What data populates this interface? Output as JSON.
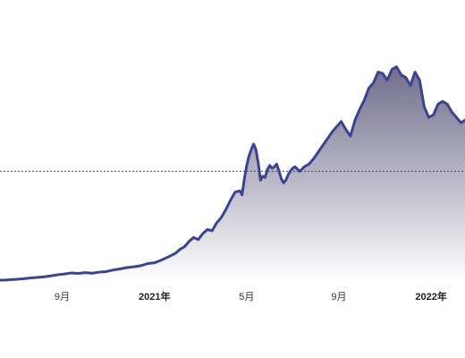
{
  "chart_data": {
    "type": "area",
    "title": "",
    "xlabel": "",
    "ylabel": "",
    "grid": false,
    "legend": "none",
    "colors": {
      "line": "#3a4590",
      "fill_top": "#6a6686",
      "fill_bottom": "#ffffff",
      "reference_line": "#3a4590"
    },
    "x_ticks": [
      {
        "label": "9月",
        "x": 2.0,
        "bold": false
      },
      {
        "label": "2021年",
        "x": 6.0,
        "bold": true
      },
      {
        "label": "5月",
        "x": 10.0,
        "bold": false
      },
      {
        "label": "9月",
        "x": 14.0,
        "bold": false
      },
      {
        "label": "2022年",
        "x": 18.0,
        "bold": true
      }
    ],
    "xlim": [
      -0.7,
      19.47
    ],
    "ylim": [
      0,
      100
    ],
    "reference_line": {
      "y": 40.8
    },
    "series": [
      {
        "x": [
          -0.7,
          -0.5,
          -0.2,
          0.0,
          0.3,
          0.6,
          0.9,
          1.2,
          1.5,
          1.8,
          2.1,
          2.4,
          2.7,
          3.0,
          3.3,
          3.6,
          3.9,
          4.2,
          4.5,
          4.8,
          5.1,
          5.4,
          5.7,
          6.0,
          6.3,
          6.6,
          6.9,
          7.1,
          7.3,
          7.5,
          7.7,
          7.9,
          8.1,
          8.3,
          8.5,
          8.7,
          8.9,
          9.1,
          9.3,
          9.5,
          9.7,
          9.8,
          9.9,
          10.0,
          10.1,
          10.2,
          10.3,
          10.4,
          10.5,
          10.6,
          10.7,
          10.8,
          10.9,
          11.0,
          11.1,
          11.2,
          11.3,
          11.4,
          11.5,
          11.6,
          11.7,
          11.8,
          11.9,
          12.0,
          12.1,
          12.3,
          12.5,
          12.7,
          12.9,
          13.1,
          13.3,
          13.5,
          13.7,
          13.9,
          14.0,
          14.1,
          14.3,
          14.5,
          14.7,
          14.9,
          15.1,
          15.3,
          15.5,
          15.7,
          15.9,
          16.1,
          16.3,
          16.5,
          16.7,
          16.9,
          17.1,
          17.3,
          17.5,
          17.7,
          17.9,
          18.1,
          18.3,
          18.5,
          18.7,
          18.9,
          19.1,
          19.3,
          19.47
        ],
        "y": [
          0.0,
          0.0,
          0.2,
          0.3,
          0.5,
          0.8,
          1.0,
          1.2,
          1.6,
          2.0,
          2.3,
          2.7,
          2.5,
          2.8,
          2.6,
          3.0,
          3.2,
          3.8,
          4.2,
          4.7,
          5.0,
          5.4,
          6.2,
          6.5,
          7.5,
          8.7,
          10.0,
          11.5,
          12.5,
          14.5,
          16.0,
          15.2,
          17.5,
          19.0,
          18.5,
          21.5,
          23.5,
          26.5,
          30.0,
          33.0,
          33.5,
          32.0,
          38.0,
          43.0,
          46.5,
          49.0,
          51.0,
          49.0,
          44.0,
          37.5,
          39.0,
          38.5,
          41.5,
          43.0,
          42.0,
          42.5,
          43.5,
          41.0,
          38.0,
          36.5,
          37.5,
          39.5,
          41.0,
          42.0,
          42.5,
          40.8,
          42.5,
          43.5,
          45.5,
          48.0,
          50.5,
          53.0,
          55.5,
          57.5,
          58.5,
          59.5,
          56.5,
          54.0,
          60.0,
          64.0,
          67.5,
          72.0,
          74.0,
          78.0,
          77.5,
          75.0,
          79.0,
          80.0,
          77.0,
          76.0,
          73.0,
          78.0,
          75.0,
          65.0,
          61.0,
          62.0,
          66.0,
          67.0,
          66.0,
          63.0,
          61.0,
          59.0,
          60.0
        ]
      }
    ]
  }
}
